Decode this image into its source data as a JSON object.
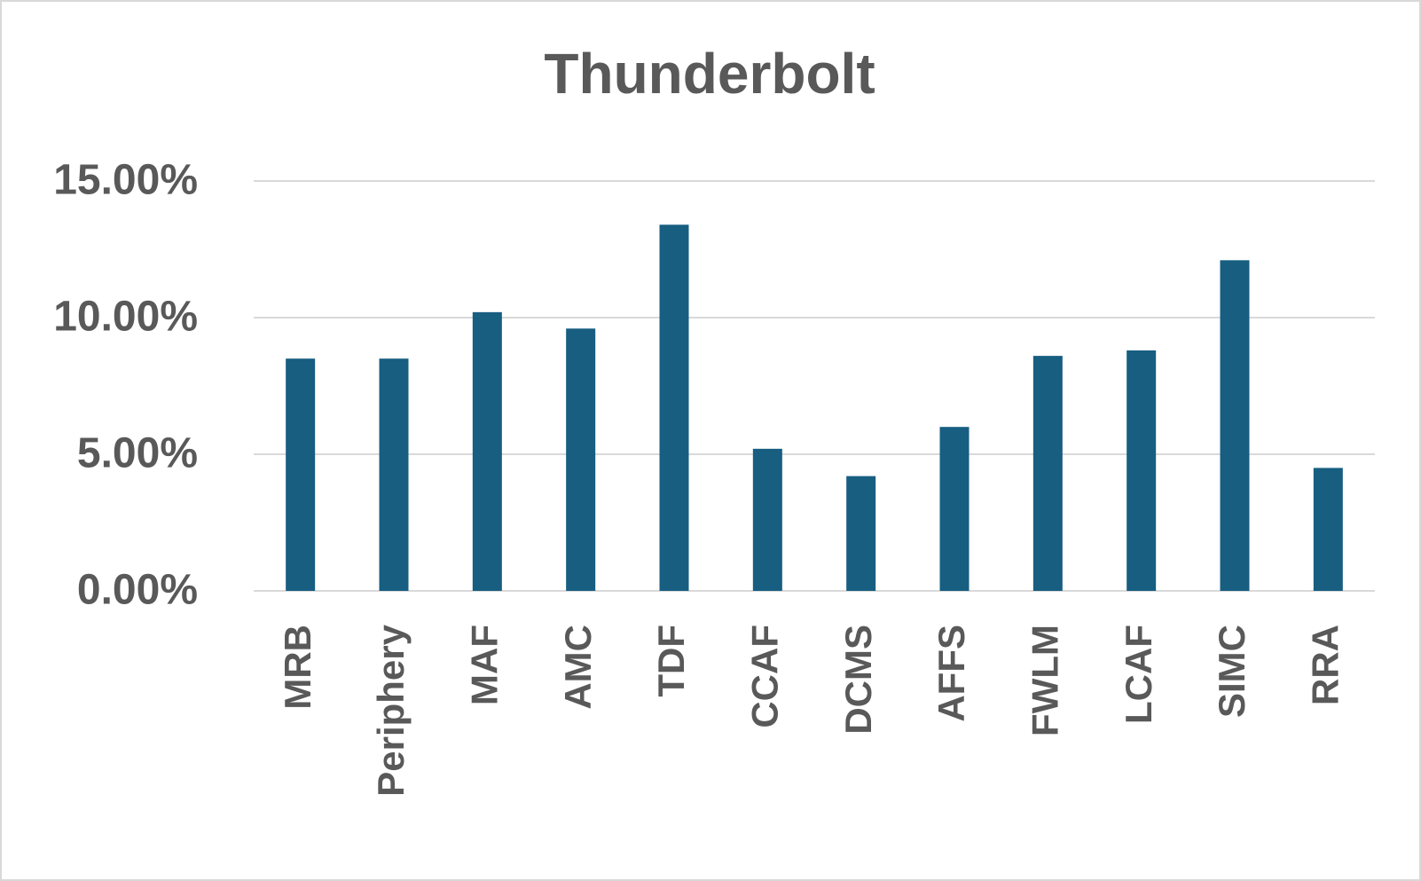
{
  "chart_data": {
    "type": "bar",
    "title": "Thunderbolt",
    "categories": [
      "MRB",
      "Periphery",
      "MAF",
      "AMC",
      "TDF",
      "CCAF",
      "DCMS",
      "AFFS",
      "FWLM",
      "LCAF",
      "SIMC",
      "RRA"
    ],
    "values": [
      8.5,
      8.5,
      10.2,
      9.6,
      13.4,
      5.2,
      4.2,
      6.0,
      8.6,
      8.8,
      12.1,
      4.5
    ],
    "color": "#175e81",
    "ylim": [
      0,
      15
    ],
    "yticks": [
      {
        "value": 0,
        "label": "0.00%"
      },
      {
        "value": 5,
        "label": "5.00%"
      },
      {
        "value": 10,
        "label": "10.00%"
      },
      {
        "value": 15,
        "label": "15.00%"
      }
    ],
    "grid": true
  }
}
